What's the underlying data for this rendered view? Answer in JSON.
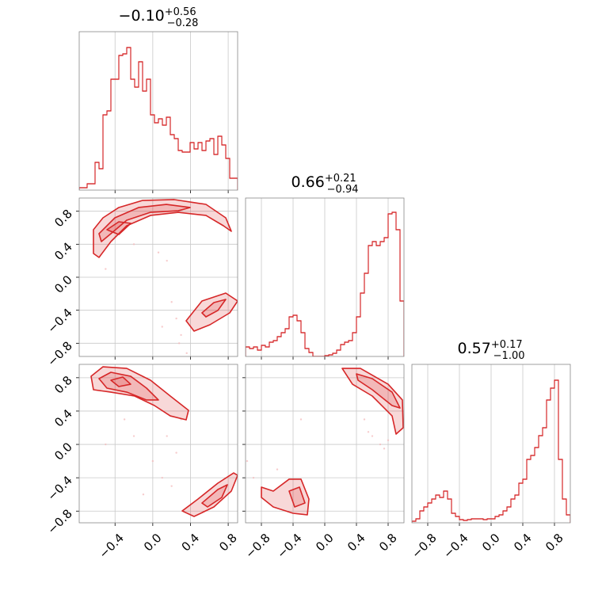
{
  "chart_data": [
    {
      "type": "histogram",
      "title": "−0.10",
      "title_sup": "+0.56",
      "title_sub": "−0.28",
      "color": "#d62728",
      "bins": [
        -0.78,
        -0.738,
        -0.696,
        -0.654,
        -0.612,
        -0.57,
        -0.528,
        -0.486,
        -0.444,
        -0.402,
        -0.36,
        -0.318,
        -0.276,
        -0.234,
        -0.192,
        -0.15,
        -0.108,
        -0.066,
        -0.024,
        0.018,
        0.06,
        0.102,
        0.144,
        0.186,
        0.228,
        0.27,
        0.312,
        0.354,
        0.396,
        0.438,
        0.48,
        0.522,
        0.564,
        0.606,
        0.648,
        0.69,
        0.732,
        0.774,
        0.816,
        0.858,
        0.9
      ],
      "counts": [
        3,
        3,
        8,
        8,
        35,
        27,
        95,
        100,
        140,
        140,
        170,
        172,
        180,
        140,
        130,
        162,
        125,
        140,
        95,
        85,
        90,
        82,
        92,
        70,
        65,
        50,
        48,
        48,
        60,
        52,
        60,
        50,
        62,
        65,
        45,
        68,
        57,
        40,
        15,
        15
      ],
      "xlim": [
        -0.78,
        0.9
      ],
      "ylim": [
        0,
        200
      ],
      "xticks": [
        -0.4,
        0,
        0.4,
        0.8
      ],
      "grid": true,
      "show_xtick_labels": false
    },
    {
      "type": "contour",
      "color": "#d62728",
      "xlim": [
        -0.78,
        0.9
      ],
      "ylim": [
        -0.96,
        0.96
      ],
      "xticks": [
        -0.4,
        0,
        0.4,
        0.8
      ],
      "yticks": [
        {
          "value": 0.8,
          "label": "0.8"
        },
        {
          "value": 0.4,
          "label": "0.4"
        },
        {
          "value": 0,
          "label": "0.0"
        },
        {
          "value": -0.4,
          "label": "−0.4"
        },
        {
          "value": -0.8,
          "label": "−0.8"
        }
      ],
      "grid": true,
      "show_xtick_labels": false,
      "show_ytick_labels": true,
      "contours": [
        {
          "x": [
            -0.629,
            -0.528,
            -0.36,
            -0.108,
            0.228,
            0.564,
            0.774,
            0.833,
            0.749,
            0.564,
            0.27,
            -0.024,
            -0.276,
            -0.444,
            -0.57,
            -0.629
          ],
          "y": [
            0.576,
            0.72,
            0.845,
            0.931,
            0.941,
            0.883,
            0.72,
            0.557,
            0.624,
            0.749,
            0.787,
            0.749,
            0.624,
            0.432,
            0.24,
            0.288
          ]
        },
        {
          "x": [
            -0.57,
            -0.402,
            -0.15,
            0.144,
            0.396,
            0.27,
            -0.024,
            -0.276,
            -0.444,
            -0.545
          ],
          "y": [
            0.528,
            0.72,
            0.845,
            0.883,
            0.845,
            0.806,
            0.787,
            0.691,
            0.528,
            0.432
          ]
        },
        {
          "x": [
            -0.486,
            -0.36,
            -0.234,
            -0.36
          ],
          "y": [
            0.576,
            0.672,
            0.653,
            0.518
          ]
        },
        {
          "x": [
            0.354,
            0.522,
            0.774,
            0.9,
            0.816,
            0.606,
            0.438
          ],
          "y": [
            -0.528,
            -0.288,
            -0.192,
            -0.288,
            -0.432,
            -0.576,
            -0.653
          ]
        },
        {
          "x": [
            0.522,
            0.648,
            0.774,
            0.69,
            0.564
          ],
          "y": [
            -0.432,
            -0.307,
            -0.269,
            -0.403,
            -0.48
          ]
        }
      ],
      "points": {
        "x": [
          0.06,
          0.15,
          0.2,
          0.25,
          0.3,
          -0.2,
          -0.5,
          0.1,
          0.28,
          0.36
        ],
        "y": [
          0.3,
          0.2,
          -0.3,
          -0.5,
          -0.7,
          0.4,
          0.1,
          -0.6,
          -0.8,
          -0.92
        ]
      }
    },
    {
      "type": "histogram",
      "title": "0.66",
      "title_sup": "+0.21",
      "title_sub": "−0.94",
      "color": "#d62728",
      "bins": [
        -1,
        -0.95,
        -0.9,
        -0.85,
        -0.8,
        -0.75,
        -0.7,
        -0.65,
        -0.6,
        -0.55,
        -0.5,
        -0.45,
        -0.4,
        -0.35,
        -0.3,
        -0.25,
        -0.2,
        -0.15,
        -0.1,
        -0.05,
        0,
        0.05,
        0.1,
        0.15,
        0.2,
        0.25,
        0.3,
        0.35,
        0.4,
        0.45,
        0.5,
        0.55,
        0.6,
        0.65,
        0.7,
        0.75,
        0.8,
        0.85,
        0.9,
        0.95,
        1
      ],
      "counts": [
        12,
        10,
        12,
        8,
        14,
        12,
        18,
        20,
        25,
        30,
        35,
        50,
        52,
        45,
        30,
        10,
        5,
        0,
        0,
        0,
        1,
        2,
        4,
        8,
        15,
        18,
        20,
        30,
        50,
        80,
        105,
        140,
        145,
        140,
        145,
        150,
        180,
        182,
        160,
        70
      ],
      "xlim": [
        -1,
        1
      ],
      "ylim": [
        0,
        200
      ],
      "xticks": [
        -0.8,
        -0.4,
        0,
        0.4,
        0.8
      ],
      "grid": true,
      "show_xtick_labels": false
    },
    {
      "type": "contour",
      "color": "#d62728",
      "xlim": [
        -0.78,
        0.9
      ],
      "ylim": [
        -0.94,
        0.96
      ],
      "xticks": [
        {
          "value": -0.4,
          "label": "−0.4"
        },
        {
          "value": 0,
          "label": "0.0"
        },
        {
          "value": 0.4,
          "label": "0.4"
        },
        {
          "value": 0.8,
          "label": "0.8"
        }
      ],
      "yticks": [
        {
          "value": 0.8,
          "label": "0.8"
        },
        {
          "value": 0.4,
          "label": "0.4"
        },
        {
          "value": 0,
          "label": "0.0"
        },
        {
          "value": -0.4,
          "label": "−0.4"
        },
        {
          "value": -0.8,
          "label": "−0.8"
        }
      ],
      "grid": true,
      "show_xtick_labels": true,
      "show_ytick_labels": true,
      "contours": [
        {
          "x": [
            -0.654,
            -0.528,
            -0.276,
            -0.024,
            0.186,
            0.379,
            0.354,
            0.186,
            0.018,
            -0.192,
            -0.444,
            -0.629
          ],
          "y": [
            0.817,
            0.931,
            0.912,
            0.77,
            0.58,
            0.409,
            0.295,
            0.342,
            0.466,
            0.58,
            0.627,
            0.656
          ]
        },
        {
          "x": [
            -0.57,
            -0.444,
            -0.234,
            -0.066,
            0.06,
            -0.066,
            -0.276,
            -0.486
          ],
          "y": [
            0.789,
            0.865,
            0.817,
            0.675,
            0.533,
            0.533,
            0.627,
            0.675
          ]
        },
        {
          "x": [
            -0.444,
            -0.318,
            -0.234,
            -0.36
          ],
          "y": [
            0.77,
            0.808,
            0.722,
            0.694
          ]
        },
        {
          "x": [
            0.312,
            0.48,
            0.69,
            0.858,
            0.9,
            0.833,
            0.648,
            0.438
          ],
          "y": [
            -0.798,
            -0.655,
            -0.465,
            -0.342,
            -0.37,
            -0.56,
            -0.75,
            -0.864
          ]
        },
        {
          "x": [
            0.522,
            0.69,
            0.791,
            0.732,
            0.581
          ],
          "y": [
            -0.703,
            -0.541,
            -0.484,
            -0.636,
            -0.75
          ]
        }
      ],
      "points": {
        "x": [
          -0.5,
          -0.2,
          0.0,
          0.1,
          0.2,
          0.3,
          -0.1,
          0.25,
          0.15,
          -0.3
        ],
        "y": [
          0.0,
          0.1,
          -0.2,
          -0.4,
          -0.5,
          0.3,
          -0.6,
          -0.1,
          0.1,
          0.3
        ]
      }
    },
    {
      "type": "contour",
      "color": "#d62728",
      "xlim": [
        -1,
        1
      ],
      "ylim": [
        -0.94,
        0.96
      ],
      "xticks": [
        {
          "value": -0.8,
          "label": "−0.8"
        },
        {
          "value": -0.4,
          "label": "−0.4"
        },
        {
          "value": 0,
          "label": "0.0"
        },
        {
          "value": 0.4,
          "label": "0.4"
        },
        {
          "value": 0.8,
          "label": "0.8"
        }
      ],
      "yticks": [
        0.8,
        0.4,
        0,
        -0.4,
        -0.8
      ],
      "grid": true,
      "show_xtick_labels": true,
      "show_ytick_labels": false,
      "contours": [
        {
          "x": [
            0.22,
            0.45,
            0.8,
            0.98,
            0.99,
            0.9,
            0.85,
            0.6,
            0.35
          ],
          "y": [
            0.912,
            0.912,
            0.722,
            0.533,
            0.2,
            0.124,
            0.342,
            0.58,
            0.722
          ]
        },
        {
          "x": [
            0.4,
            0.6,
            0.85,
            0.95,
            0.85,
            0.6,
            0.42
          ],
          "y": [
            0.846,
            0.789,
            0.627,
            0.437,
            0.466,
            0.656,
            0.77
          ]
        },
        {
          "x": [
            -0.8,
            -0.65,
            -0.45,
            -0.3,
            -0.2,
            -0.22,
            -0.4,
            -0.65,
            -0.8
          ],
          "y": [
            -0.512,
            -0.56,
            -0.417,
            -0.417,
            -0.655,
            -0.845,
            -0.826,
            -0.75,
            -0.636
          ]
        },
        {
          "x": [
            -0.45,
            -0.32,
            -0.25,
            -0.38
          ],
          "y": [
            -0.56,
            -0.512,
            -0.703,
            -0.75
          ]
        }
      ],
      "points": {
        "x": [
          -0.98,
          -0.9,
          -0.6,
          -0.3,
          0.5,
          0.6,
          0.7,
          0.8,
          0.55,
          0.75
        ],
        "y": [
          -0.2,
          -0.4,
          -0.3,
          0.3,
          0.3,
          0.1,
          0.0,
          0.05,
          0.15,
          -0.05
        ]
      }
    },
    {
      "type": "histogram",
      "title": "0.57",
      "title_sup": "+0.17",
      "title_sub": "−1.00",
      "color": "#d62728",
      "bins": [
        -1,
        -0.95,
        -0.9,
        -0.85,
        -0.8,
        -0.75,
        -0.7,
        -0.65,
        -0.6,
        -0.55,
        -0.5,
        -0.45,
        -0.4,
        -0.35,
        -0.3,
        -0.25,
        -0.2,
        -0.15,
        -0.1,
        -0.05,
        0,
        0.05,
        0.1,
        0.15,
        0.2,
        0.25,
        0.3,
        0.35,
        0.4,
        0.45,
        0.5,
        0.55,
        0.6,
        0.65,
        0.7,
        0.75,
        0.8,
        0.85,
        0.9,
        0.95,
        1
      ],
      "counts": [
        2,
        5,
        15,
        20,
        25,
        30,
        35,
        32,
        40,
        30,
        12,
        8,
        4,
        3,
        4,
        5,
        5,
        5,
        4,
        5,
        5,
        8,
        10,
        15,
        20,
        30,
        35,
        50,
        55,
        80,
        85,
        95,
        110,
        120,
        155,
        170,
        180,
        80,
        30,
        10
      ],
      "xlim": [
        -1,
        1
      ],
      "ylim": [
        0,
        200
      ],
      "xticks": [
        {
          "value": -0.8,
          "label": "−0.8"
        },
        {
          "value": -0.4,
          "label": "−0.4"
        },
        {
          "value": 0,
          "label": "0.0"
        },
        {
          "value": 0.4,
          "label": "0.4"
        },
        {
          "value": 0.8,
          "label": "0.8"
        }
      ],
      "grid": true,
      "show_xtick_labels": true
    }
  ]
}
